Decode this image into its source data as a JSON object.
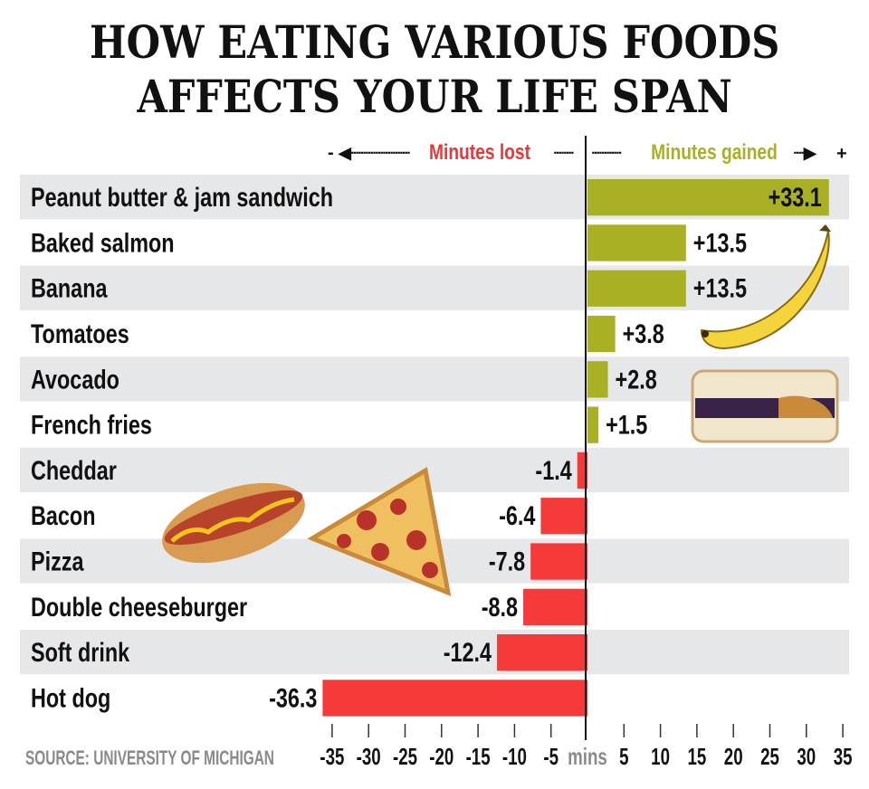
{
  "title_line1": "HOW EATING VARIOUS FOODS",
  "title_line2": "AFFECTS YOUR LIFE SPAN",
  "legend": {
    "lost": "Minutes lost",
    "gained": "Minutes gained",
    "minus": "-",
    "plus": "+"
  },
  "source": "SOURCE: UNIVERSITY OF MICHIGAN",
  "colors": {
    "gained": "#a9b024",
    "lost": "#f53a3a",
    "stripe": "#e6e7e9",
    "lost_text": "#e8373a",
    "gained_text": "#a9b024"
  },
  "chart_data": {
    "type": "bar",
    "orientation": "horizontal",
    "categories": [
      "Peanut butter & jam sandwich",
      "Baked salmon",
      "Banana",
      "Tomatoes",
      "Avocado",
      "French fries",
      "Cheddar",
      "Bacon",
      "Pizza",
      "Double cheeseburger",
      "Soft drink",
      "Hot dog"
    ],
    "values": [
      33.1,
      13.5,
      13.5,
      3.8,
      2.8,
      1.5,
      -1.4,
      -6.4,
      -7.8,
      -8.8,
      -12.4,
      -36.3
    ],
    "data_labels": [
      "+33.1",
      "+13.5",
      "+13.5",
      "+3.8",
      "+2.8",
      "+1.5",
      "-1.4",
      "-6.4",
      "-7.8",
      "-8.8",
      "-12.4",
      "-36.3"
    ],
    "xlim": [
      -35,
      35
    ],
    "xticks": [
      -35,
      -30,
      -25,
      -20,
      -15,
      -10,
      -5,
      5,
      10,
      15,
      20,
      25,
      30,
      35
    ],
    "xtick_labels": [
      "-35",
      "-30",
      "-25",
      "-20",
      "-15",
      "-10",
      "-5",
      "5",
      "10",
      "15",
      "20",
      "25",
      "30",
      "35"
    ],
    "xlabel": "mins",
    "grid": false
  },
  "illustrations": [
    "banana-image",
    "sandwich-image",
    "hot-dog-image",
    "pizza-image"
  ]
}
